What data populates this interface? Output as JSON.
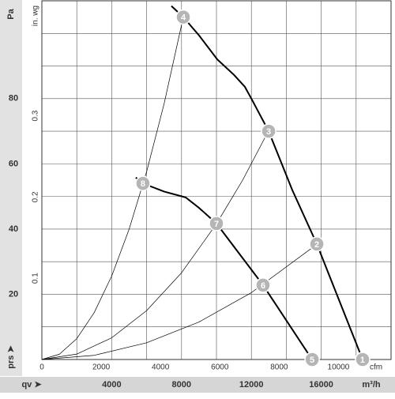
{
  "chart_data": {
    "type": "line",
    "y_label": "Pa",
    "y2_label": "in. wg",
    "x_label": "qv ➤",
    "x_unit": "m³/h",
    "x2_unit": "cfm",
    "y_axis_symbol": "prs ➤",
    "xlim": [
      0,
      20000
    ],
    "xticks": [
      4000,
      8000,
      12000,
      16000
    ],
    "xgrid": [
      0,
      2000,
      4000,
      6000,
      8000,
      10000,
      12000,
      14000,
      16000,
      18000,
      20000
    ],
    "x2lim": [
      0,
      11772
    ],
    "x2ticks": [
      0,
      2000,
      4000,
      6000,
      8000,
      10000
    ],
    "ylim": [
      0,
      110
    ],
    "yticks": [
      20,
      40,
      60,
      80
    ],
    "ygrid": [
      10,
      20,
      30,
      40,
      50,
      60,
      70,
      80,
      90,
      100
    ],
    "y2lim": [
      0,
      0.4416
    ],
    "y2ticks": [
      0.1,
      0.2,
      0.3
    ],
    "color": "#000000",
    "series": [
      {
        "style": "thick",
        "x": [
          7420,
          8100,
          9000,
          10050,
          11000,
          11630,
          12000,
          12990,
          14340,
          15750,
          18370
        ],
        "values": [
          108.4,
          105,
          99.4,
          92,
          87.3,
          83.6,
          80,
          70,
          52,
          35.4,
          0
        ]
      },
      {
        "style": "thick",
        "x": [
          5380,
          5790,
          7000,
          8240,
          9000,
          10000,
          11300,
          12670,
          14000,
          15480
        ],
        "values": [
          55.8,
          54,
          51.5,
          49.7,
          46.5,
          41.7,
          32.5,
          22.8,
          12,
          0
        ]
      },
      {
        "style": "thin",
        "x": [
          0,
          1000,
          2000,
          3000,
          4000,
          5000,
          6000,
          7000,
          8100
        ],
        "values": [
          0,
          1.6,
          6.4,
          14.4,
          25.6,
          40,
          57.6,
          78.4,
          105
        ]
      },
      {
        "style": "thin",
        "x": [
          0,
          2000,
          4000,
          6000,
          8000,
          10000,
          11500,
          12990
        ],
        "values": [
          0,
          1.66,
          6.66,
          15,
          26.6,
          41.6,
          55,
          70.2
        ]
      },
      {
        "style": "thin",
        "x": [
          0,
          3000,
          6000,
          9000,
          12000,
          15750
        ],
        "values": [
          0,
          1.28,
          5.13,
          11.5,
          20.5,
          35.3
        ]
      }
    ],
    "points": [
      {
        "label": "1",
        "x": 18370,
        "y": 0
      },
      {
        "label": "2",
        "x": 15750,
        "y": 35.4
      },
      {
        "label": "3",
        "x": 12990,
        "y": 70
      },
      {
        "label": "4",
        "x": 8100,
        "y": 105
      },
      {
        "label": "5",
        "x": 15480,
        "y": 0
      },
      {
        "label": "6",
        "x": 12670,
        "y": 22.8
      },
      {
        "label": "7",
        "x": 10000,
        "y": 41.7
      },
      {
        "label": "8",
        "x": 5790,
        "y": 54
      }
    ]
  }
}
